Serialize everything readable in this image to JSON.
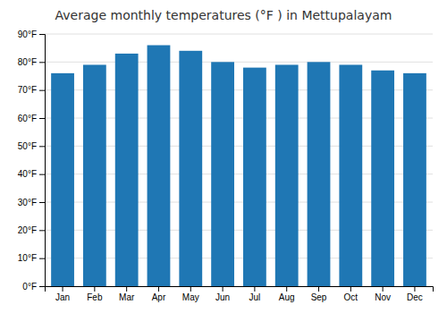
{
  "chart_data": {
    "type": "bar",
    "title": "Average monthly temperatures (°F ) in Mettupalayam",
    "categories": [
      "Jan",
      "Feb",
      "Mar",
      "Apr",
      "May",
      "Jun",
      "Jul",
      "Aug",
      "Sep",
      "Oct",
      "Nov",
      "Dec"
    ],
    "values": [
      76,
      79,
      83,
      86,
      84,
      80,
      78,
      79,
      80,
      79,
      77,
      76
    ],
    "ylim": [
      0,
      90
    ],
    "yticks": [
      {
        "value": 0,
        "label": "0°F"
      },
      {
        "value": 10,
        "label": "10°F"
      },
      {
        "value": 20,
        "label": "20°F"
      },
      {
        "value": 30,
        "label": "30°F"
      },
      {
        "value": 40,
        "label": "40°F"
      },
      {
        "value": 50,
        "label": "50°F"
      },
      {
        "value": 60,
        "label": "60°F"
      },
      {
        "value": 70,
        "label": "70°F"
      },
      {
        "value": 80,
        "label": "80°F"
      },
      {
        "value": 90,
        "label": "90°F"
      }
    ],
    "grid": true
  }
}
